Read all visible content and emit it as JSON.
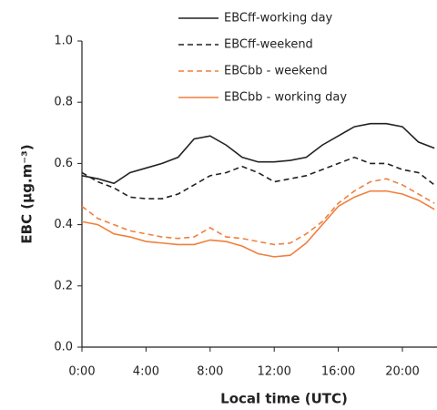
{
  "chart_data": {
    "type": "line",
    "y_label": "EBC (μg.m⁻³)",
    "x_label": "Local time (UTC)",
    "x": [
      0,
      1,
      2,
      3,
      4,
      5,
      6,
      7,
      8,
      9,
      10,
      11,
      12,
      13,
      14,
      15,
      16,
      17,
      18,
      19,
      20,
      21,
      22
    ],
    "xlim": [
      0,
      22.5
    ],
    "xticks": [
      {
        "value": 0,
        "label": "0:00"
      },
      {
        "value": 4,
        "label": "4:00"
      },
      {
        "value": 8,
        "label": "8:00"
      },
      {
        "value": 12,
        "label": "12:00"
      },
      {
        "value": 16,
        "label": "16:00"
      },
      {
        "value": 20,
        "label": "20:00"
      }
    ],
    "ylim": [
      0,
      1
    ],
    "yticks": [
      {
        "value": 0,
        "label": "0.0"
      },
      0.2,
      0.4,
      0.6,
      0.8,
      {
        "value": 1,
        "label": "1.0"
      }
    ],
    "legend": "top-right",
    "series": [
      {
        "name": "EBCff-working day",
        "color": "#222222",
        "linestyle": "solid",
        "values": [
          0.56,
          0.55,
          0.535,
          0.57,
          0.585,
          0.6,
          0.62,
          0.68,
          0.69,
          0.66,
          0.62,
          0.605,
          0.605,
          0.61,
          0.62,
          0.66,
          0.69,
          0.72,
          0.73,
          0.73,
          0.72,
          0.67,
          0.65
        ]
      },
      {
        "name": "EBCff-weekend",
        "color": "#222222",
        "linestyle": "dashed",
        "values": [
          0.57,
          0.54,
          0.52,
          0.49,
          0.485,
          0.485,
          0.5,
          0.53,
          0.56,
          0.57,
          0.59,
          0.57,
          0.54,
          0.55,
          0.56,
          0.58,
          0.6,
          0.62,
          0.6,
          0.6,
          0.58,
          0.57,
          0.53
        ]
      },
      {
        "name": "EBCbb - weekend",
        "color": "#f07f3c",
        "linestyle": "dashed",
        "values": [
          0.46,
          0.42,
          0.4,
          0.38,
          0.37,
          0.36,
          0.355,
          0.36,
          0.39,
          0.36,
          0.355,
          0.345,
          0.335,
          0.34,
          0.37,
          0.41,
          0.47,
          0.51,
          0.54,
          0.55,
          0.53,
          0.5,
          0.47
        ]
      },
      {
        "name": "EBCbb - working day",
        "color": "#f07f3c",
        "linestyle": "solid",
        "values": [
          0.41,
          0.4,
          0.37,
          0.36,
          0.345,
          0.34,
          0.335,
          0.335,
          0.35,
          0.345,
          0.33,
          0.305,
          0.295,
          0.3,
          0.34,
          0.4,
          0.46,
          0.49,
          0.51,
          0.51,
          0.5,
          0.48,
          0.45
        ]
      }
    ]
  }
}
